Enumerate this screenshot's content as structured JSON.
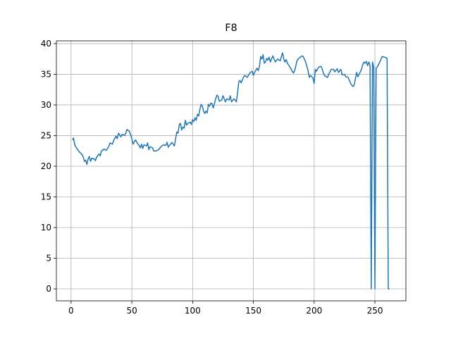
{
  "chart_data": {
    "type": "line",
    "title": "F8",
    "x": [
      1,
      2,
      3,
      5,
      7,
      9,
      10,
      11,
      12,
      13,
      14,
      15,
      16,
      17,
      19,
      20,
      21,
      23,
      24,
      25,
      27,
      29,
      31,
      32,
      34,
      35,
      37,
      38,
      39,
      41,
      42,
      44,
      45,
      46,
      48,
      49,
      50,
      51,
      52,
      53,
      55,
      56,
      57,
      58,
      59,
      60,
      62,
      63,
      64,
      65,
      67,
      68,
      70,
      72,
      74,
      76,
      78,
      79,
      80,
      81,
      83,
      85,
      86,
      87,
      88,
      89,
      90,
      91,
      92,
      93,
      94,
      95,
      96,
      98,
      99,
      100,
      101,
      102,
      103,
      104,
      105,
      106,
      107,
      108,
      109,
      110,
      111,
      112,
      113,
      114,
      115,
      116,
      117,
      119,
      120,
      121,
      122,
      124,
      125,
      127,
      128,
      130,
      131,
      132,
      134,
      136,
      137,
      138,
      139,
      140,
      142,
      143,
      145,
      147,
      149,
      150,
      151,
      153,
      154,
      155,
      156,
      157,
      158,
      159,
      160,
      161,
      162,
      163,
      164,
      166,
      168,
      170,
      172,
      174,
      175,
      176,
      177,
      178,
      180,
      182,
      183,
      184,
      186,
      188,
      190,
      191,
      193,
      195,
      196,
      197,
      199,
      200,
      201,
      202,
      203,
      205,
      206,
      208,
      209,
      211,
      212,
      214,
      216,
      217,
      219,
      220,
      222,
      223,
      225,
      226,
      228,
      230,
      232,
      233,
      235,
      236,
      237,
      239,
      240,
      241,
      242,
      243,
      244,
      245,
      246,
      247,
      248,
      249,
      250,
      251,
      252,
      254,
      256,
      258,
      260,
      261,
      262
    ],
    "series": [
      {
        "name": "F8",
        "color": "#1f77b4",
        "values": [
          24.3,
          24.6,
          23.5,
          22.8,
          22.3,
          21.9,
          21.5,
          20.8,
          21.0,
          20.3,
          21.2,
          21.6,
          20.8,
          21.3,
          21.2,
          20.9,
          21.5,
          22.0,
          21.7,
          22.5,
          22.8,
          22.6,
          23.2,
          23.8,
          23.6,
          24.2,
          24.9,
          24.5,
          25.4,
          24.8,
          25.2,
          25.0,
          25.4,
          26.0,
          25.7,
          25.1,
          24.5,
          23.6,
          24.0,
          24.3,
          23.6,
          23.4,
          23.0,
          23.6,
          22.9,
          23.5,
          23.3,
          23.8,
          22.7,
          23.2,
          23.0,
          22.5,
          22.5,
          22.7,
          23.2,
          23.5,
          23.4,
          23.9,
          23.1,
          23.4,
          23.9,
          23.3,
          24.5,
          25.6,
          25.4,
          26.8,
          27.0,
          25.9,
          26.4,
          26.2,
          27.5,
          26.7,
          27.0,
          27.2,
          26.8,
          27.6,
          27.3,
          27.9,
          27.5,
          28.5,
          28.2,
          29.3,
          30.1,
          29.8,
          29.0,
          28.6,
          29.0,
          28.7,
          30.1,
          29.8,
          30.3,
          30.2,
          29.5,
          31.0,
          31.6,
          31.4,
          30.6,
          30.8,
          31.5,
          30.5,
          31.0,
          30.8,
          31.5,
          30.5,
          31.0,
          30.5,
          32.0,
          33.8,
          34.0,
          33.6,
          34.6,
          34.8,
          34.5,
          35.2,
          35.5,
          34.8,
          35.3,
          36.0,
          35.6,
          36.3,
          37.9,
          37.5,
          38.2,
          36.8,
          37.0,
          37.6,
          37.3,
          37.8,
          37.0,
          38.0,
          37.0,
          37.5,
          37.2,
          38.5,
          37.5,
          37.0,
          37.4,
          36.8,
          36.2,
          35.5,
          35.2,
          35.6,
          37.3,
          37.7,
          38.0,
          37.9,
          37.0,
          35.6,
          34.5,
          34.8,
          34.4,
          33.5,
          35.8,
          35.5,
          36.0,
          36.3,
          36.2,
          35.0,
          34.7,
          34.5,
          35.0,
          35.8,
          35.8,
          35.4,
          35.9,
          35.3,
          35.8,
          34.9,
          35.0,
          34.6,
          34.5,
          33.5,
          33.0,
          33.3,
          35.3,
          34.6,
          35.0,
          35.8,
          36.6,
          37.0,
          36.8,
          37.1,
          36.4,
          37.0,
          36.5,
          0,
          37.0,
          36.2,
          0,
          36.0,
          36.2,
          37.0,
          37.9,
          37.8,
          37.6,
          0,
          0
        ]
      }
    ],
    "xlim": [
      -12.1,
      275.5
    ],
    "ylim": [
      -1.95,
      40.45
    ],
    "xticks": [
      0,
      50,
      100,
      150,
      200,
      250
    ],
    "yticks": [
      0,
      5,
      10,
      15,
      20,
      25,
      30,
      35,
      40
    ],
    "grid": true
  }
}
